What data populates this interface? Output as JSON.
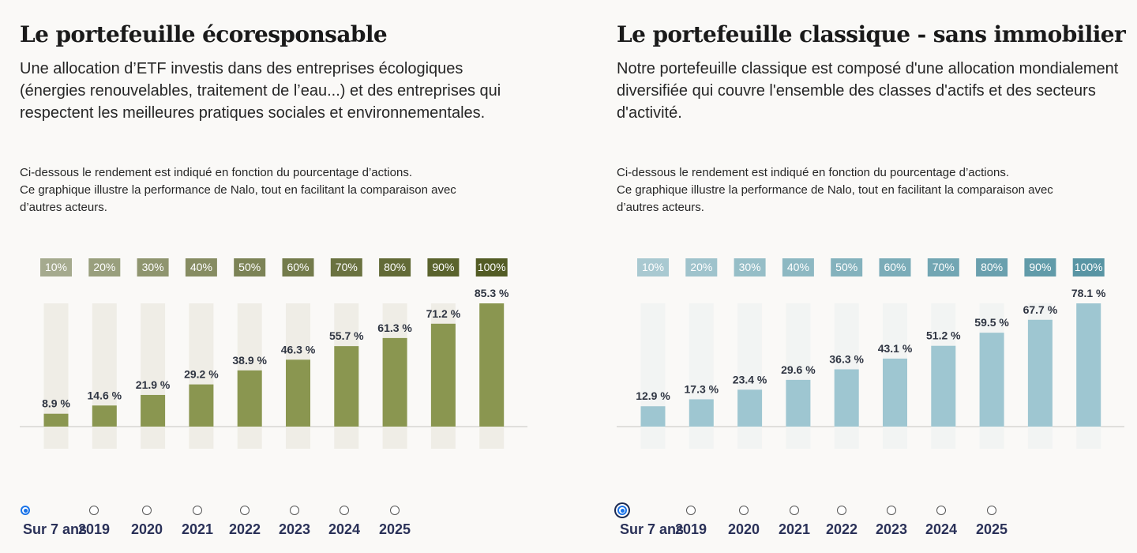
{
  "panels": [
    {
      "title": "Le portefeuille écoresponsable",
      "description": "Une allocation d’ETF investis dans des entreprises écologiques (énergies renouvelables, traitement de l’eau...) et des entreprises qui respectent les meilleures pratiques sociales et environnementales.",
      "note_lines": [
        "Ci-dessous le rendement est indiqué en fonction du pourcentage d’actions.",
        "Ce graphique illustre la performance de Nalo, tout en facilitant la comparaison avec",
        "d’autres acteurs."
      ],
      "bar_color": "#8a9650",
      "track_color": "#efede6",
      "header_colors": [
        "#a5aa8e",
        "#999f7d",
        "#8f956f",
        "#868c62",
        "#7c8356",
        "#737b4b",
        "#6a7240",
        "#626a36",
        "#5a632d",
        "#535c25"
      ],
      "radio_options": [
        "Sur 7 ans",
        "2019",
        "2020",
        "2021",
        "2022",
        "2023",
        "2024",
        "2025"
      ],
      "selected_option": "Sur 7 ans"
    },
    {
      "title": "Le portefeuille classique - sans immobilier",
      "description": "Notre portefeuille classique est composé d'une allocation mondialement diversifiée qui couvre l'ensemble des classes d'actifs et des secteurs d'activité.",
      "note_lines": [
        "Ci-dessous le rendement est indiqué en fonction du pourcentage d’actions.",
        "Ce graphique illustre la performance de Nalo, tout en facilitant la comparaison avec",
        "d’autres acteurs."
      ],
      "bar_color": "#9ec6d1",
      "track_color": "#f2f4f3",
      "header_colors": [
        "#a9c9d1",
        "#9fc3cc",
        "#96bec7",
        "#8db8c2",
        "#84b2bd",
        "#7bacb8",
        "#72a6b3",
        "#6aa0ae",
        "#619ba9",
        "#5995a4"
      ],
      "radio_options": [
        "Sur 7 ans",
        "2019",
        "2020",
        "2021",
        "2022",
        "2023",
        "2024",
        "2025"
      ],
      "selected_option": "Sur 7 ans"
    }
  ],
  "chart_data": [
    {
      "type": "bar",
      "categories": [
        "10%",
        "20%",
        "30%",
        "40%",
        "50%",
        "60%",
        "70%",
        "80%",
        "90%",
        "100%"
      ],
      "values": [
        8.9,
        14.6,
        21.9,
        29.2,
        38.9,
        46.3,
        55.7,
        61.3,
        71.2,
        85.3
      ],
      "value_labels": [
        "8.9 %",
        "14.6 %",
        "21.9 %",
        "29.2 %",
        "38.9 %",
        "46.3 %",
        "55.7 %",
        "61.3 %",
        "71.2 %",
        "85.3 %"
      ],
      "ylim": [
        0,
        85.3
      ],
      "grid": false
    },
    {
      "type": "bar",
      "categories": [
        "10%",
        "20%",
        "30%",
        "40%",
        "50%",
        "60%",
        "70%",
        "80%",
        "90%",
        "100%"
      ],
      "values": [
        12.9,
        17.3,
        23.4,
        29.6,
        36.3,
        43.1,
        51.2,
        59.5,
        67.7,
        78.1
      ],
      "value_labels": [
        "12.9 %",
        "17.3 %",
        "23.4 %",
        "29.6 %",
        "36.3 %",
        "43.1 %",
        "51.2 %",
        "59.5 %",
        "67.7 %",
        "78.1 %"
      ],
      "ylim": [
        0,
        78.1
      ],
      "grid": false
    }
  ]
}
